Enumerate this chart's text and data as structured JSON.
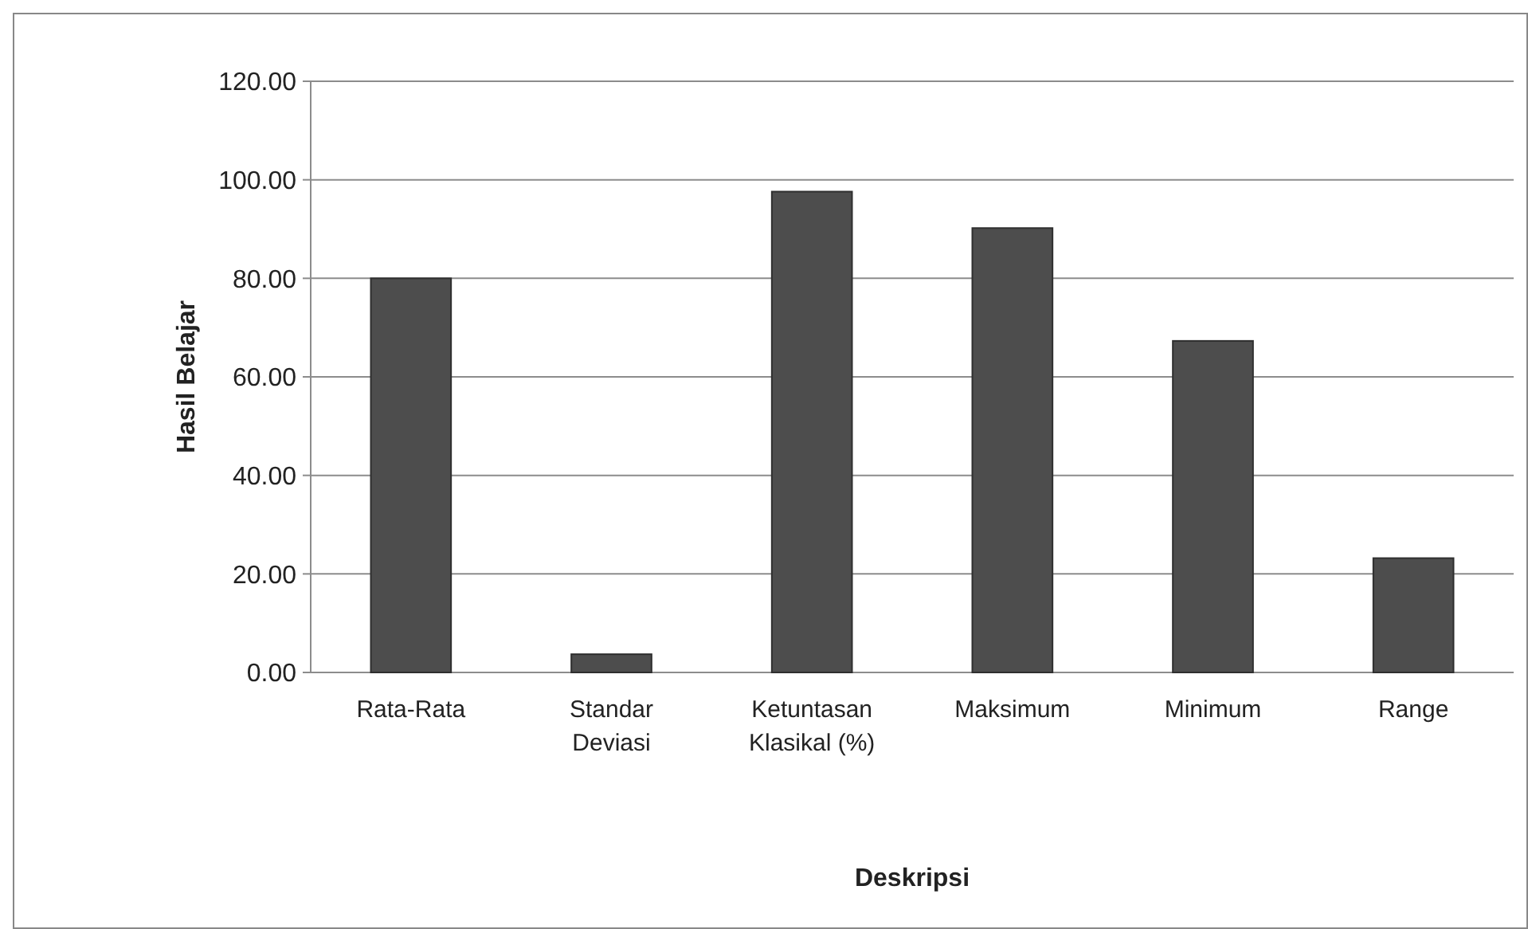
{
  "chart_data": {
    "type": "bar",
    "xlabel": "Deskripsi",
    "ylabel": "Hasil Belajar",
    "categories": [
      "Rata-Rata",
      "Standar Deviasi",
      "Ketuntasan Klasikal (%)",
      "Maksimum",
      "Minimum",
      "Range"
    ],
    "values": [
      80,
      3.7,
      97.6,
      90.2,
      67.3,
      23.2
    ],
    "color": "#4d4d4d",
    "ylim": [
      0,
      120
    ],
    "yticks": [
      {
        "value": 0,
        "label": "0.00"
      },
      {
        "value": 20,
        "label": "20.00"
      },
      {
        "value": 40,
        "label": "40.00"
      },
      {
        "value": 60,
        "label": "60.00"
      },
      {
        "value": 80,
        "label": "80.00"
      },
      {
        "value": 100,
        "label": "100.00"
      },
      {
        "value": 120,
        "label": "120.00"
      }
    ],
    "grid": "y"
  }
}
